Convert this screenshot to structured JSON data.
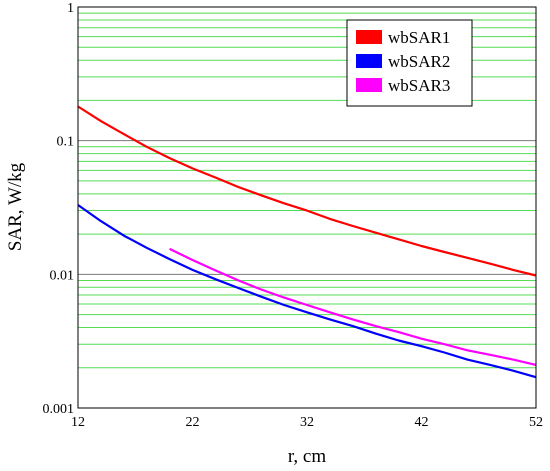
{
  "chart_data": {
    "type": "line",
    "xlabel": "r, cm",
    "ylabel": "SAR, W/kg",
    "xlim": [
      12,
      52
    ],
    "ylim": [
      0.001,
      1
    ],
    "yscale": "log",
    "x_ticks": [
      "12",
      "22",
      "32",
      "42",
      "52"
    ],
    "y_ticks": [
      "0.001",
      "0.01",
      "0.1",
      "1"
    ],
    "minor_grid": true,
    "major_grid": true,
    "minor_grid_color": "#55dd55",
    "major_grid_color": "#7a7a7a",
    "legend_position": "top-right",
    "series": [
      {
        "name": "wbSAR1",
        "color": "#ff0000",
        "x": [
          12,
          14,
          16,
          18,
          20,
          22,
          24,
          26,
          28,
          30,
          32,
          34,
          36,
          38,
          40,
          42,
          44,
          46,
          48,
          50,
          52
        ],
        "y": [
          0.18,
          0.14,
          0.112,
          0.09,
          0.074,
          0.062,
          0.053,
          0.045,
          0.039,
          0.034,
          0.03,
          0.026,
          0.023,
          0.0205,
          0.0183,
          0.0163,
          0.0147,
          0.0133,
          0.012,
          0.0108,
          0.0098
        ]
      },
      {
        "name": "wbSAR2",
        "color": "#0000ff",
        "x": [
          12,
          14,
          16,
          18,
          20,
          22,
          24,
          26,
          28,
          30,
          32,
          34,
          36,
          38,
          40,
          42,
          44,
          46,
          48,
          50,
          52
        ],
        "y": [
          0.033,
          0.025,
          0.0195,
          0.0158,
          0.013,
          0.0108,
          0.0092,
          0.0079,
          0.0068,
          0.0059,
          0.0052,
          0.0046,
          0.0041,
          0.0036,
          0.0032,
          0.0029,
          0.0026,
          0.0023,
          0.0021,
          0.0019,
          0.0017
        ]
      },
      {
        "name": "wbSAR3",
        "color": "#ff00ff",
        "x": [
          20,
          22,
          24,
          26,
          28,
          30,
          32,
          34,
          36,
          38,
          40,
          42,
          44,
          46,
          48,
          50,
          52
        ],
        "y": [
          0.0155,
          0.0128,
          0.0107,
          0.009,
          0.0077,
          0.0067,
          0.0059,
          0.0052,
          0.0046,
          0.0041,
          0.0037,
          0.0033,
          0.003,
          0.0027,
          0.0025,
          0.0023,
          0.0021
        ]
      }
    ]
  }
}
